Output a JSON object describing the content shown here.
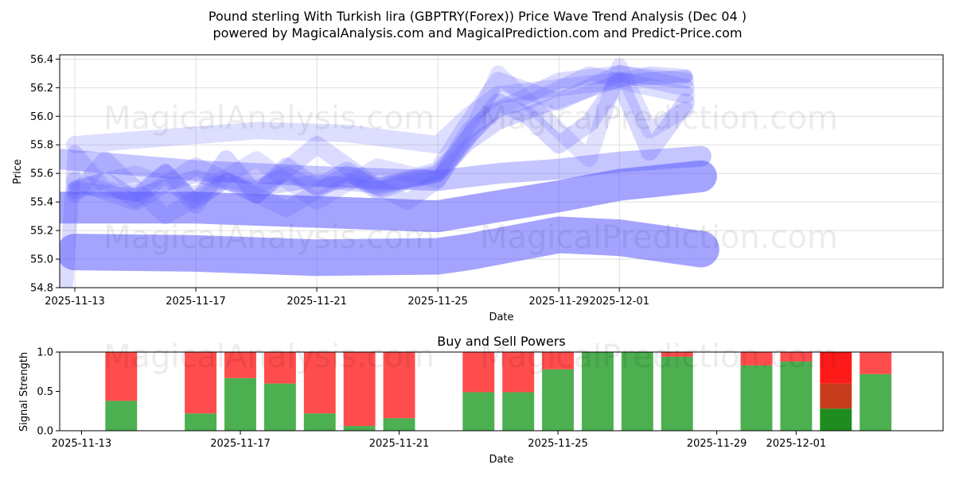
{
  "title_line1": "Pound sterling With Turkish lira (GBPTRY(Forex)) Price Wave Trend Analysis (Dec 04 )",
  "title_line2": "powered by MagicalAnalysis.com and MagicalPrediction.com and Predict-Price.com",
  "watermarks": [
    "MagicalAnalysis.com",
    "MagicalPrediction.com"
  ],
  "colors": {
    "wave": "#5a5aff",
    "buy": "#4caf50",
    "sell": "#ff4c4c",
    "buy_dark": "#1e8c1e",
    "sell_dark": "#ff1a1a",
    "mixed": "#c83c1e"
  },
  "chart_data": [
    {
      "type": "line",
      "title": "",
      "xlabel": "Date",
      "ylabel": "Price",
      "x_day_range": [
        -0.5,
        28.7
      ],
      "ylim": [
        54.8,
        56.43
      ],
      "x_ticks": [
        {
          "day": 0,
          "label": "2025-11-13"
        },
        {
          "day": 4,
          "label": "2025-11-17"
        },
        {
          "day": 8,
          "label": "2025-11-21"
        },
        {
          "day": 12,
          "label": "2025-11-25"
        },
        {
          "day": 16,
          "label": "2025-11-29"
        },
        {
          "day": 18,
          "label": "2025-12-01"
        }
      ],
      "y_ticks": [
        54.8,
        55.0,
        55.2,
        55.4,
        55.6,
        55.8,
        56.0,
        56.2,
        56.4
      ],
      "series": [
        {
          "name": "wave-1",
          "width": 46,
          "opacity": 0.55,
          "x": [
            0,
            4,
            8,
            12,
            13,
            16,
            18,
            20.7
          ],
          "y": [
            55.05,
            55.04,
            55.01,
            55.02,
            55.05,
            55.17,
            55.15,
            55.07
          ]
        },
        {
          "name": "wave-2",
          "width": 40,
          "opacity": 0.55,
          "x": [
            -0.5,
            4,
            8,
            12,
            14,
            16,
            18,
            20.7
          ],
          "y": [
            55.36,
            55.36,
            55.33,
            55.3,
            55.37,
            55.44,
            55.52,
            55.58
          ]
        },
        {
          "name": "wave-3",
          "width": 26,
          "opacity": 0.35,
          "x": [
            -0.5,
            4,
            8,
            12,
            14,
            16,
            18,
            20.7
          ],
          "y": [
            55.7,
            55.62,
            55.58,
            55.55,
            55.6,
            55.63,
            55.68,
            55.72
          ]
        },
        {
          "name": "wave-4",
          "width": 22,
          "opacity": 0.25,
          "x": [
            0,
            1,
            2,
            3,
            4,
            5,
            6,
            7,
            8,
            9,
            10,
            11,
            12,
            13,
            14,
            15,
            16,
            17,
            18,
            19,
            20.2
          ],
          "y": [
            55.48,
            55.55,
            55.42,
            55.6,
            55.38,
            55.7,
            55.45,
            55.65,
            55.5,
            55.62,
            55.48,
            55.55,
            55.6,
            55.85,
            56.1,
            56.0,
            55.8,
            55.95,
            56.25,
            55.75,
            56.1
          ]
        },
        {
          "name": "wave-5",
          "width": 22,
          "opacity": 0.22,
          "x": [
            0,
            2,
            4,
            6,
            8,
            10,
            12,
            13,
            14,
            16,
            18,
            20.2
          ],
          "y": [
            55.55,
            55.4,
            55.65,
            55.45,
            55.8,
            55.5,
            55.62,
            55.95,
            56.25,
            56.1,
            56.3,
            56.2
          ]
        },
        {
          "name": "wave-6",
          "width": 22,
          "opacity": 0.2,
          "x": [
            0,
            3,
            6,
            9,
            12,
            13,
            14,
            16,
            18,
            20.2
          ],
          "y": [
            55.8,
            55.85,
            55.9,
            55.88,
            55.8,
            56.0,
            56.15,
            56.2,
            56.25,
            56.15
          ]
        },
        {
          "name": "wave-7",
          "width": 20,
          "opacity": 0.22,
          "x": [
            0,
            1,
            3,
            5,
            7,
            9,
            11,
            12,
            13,
            14,
            16,
            18,
            20.2
          ],
          "y": [
            55.45,
            55.7,
            55.3,
            55.55,
            55.35,
            55.6,
            55.4,
            55.55,
            55.9,
            56.05,
            56.25,
            56.3,
            56.25
          ]
        },
        {
          "name": "wave-8",
          "width": 20,
          "opacity": 0.18,
          "x": [
            0,
            2,
            4,
            6,
            8,
            10,
            12,
            13,
            14,
            15,
            16,
            17,
            18,
            19,
            20.2
          ],
          "y": [
            55.5,
            55.6,
            55.45,
            55.7,
            55.4,
            55.65,
            55.55,
            55.85,
            56.3,
            56.1,
            55.9,
            55.7,
            56.35,
            55.9,
            56.05
          ]
        },
        {
          "name": "wave-9",
          "width": 18,
          "opacity": 0.22,
          "x": [
            -0.3,
            0,
            1,
            2,
            3,
            4,
            5,
            6,
            7,
            8,
            9,
            10,
            11,
            12,
            13,
            14,
            15,
            16,
            17,
            18,
            19,
            20.2
          ],
          "y": [
            54.8,
            55.75,
            55.5,
            55.45,
            55.62,
            55.4,
            55.55,
            55.5,
            55.6,
            55.5,
            55.55,
            55.52,
            55.55,
            55.6,
            55.85,
            56.05,
            56.1,
            56.2,
            56.3,
            56.25,
            56.3,
            56.28
          ]
        },
        {
          "name": "wave-10",
          "width": 16,
          "opacity": 0.25,
          "x": [
            0,
            2,
            4,
            6,
            8,
            10,
            12,
            13,
            14,
            16,
            18,
            20.2
          ],
          "y": [
            55.5,
            55.45,
            55.58,
            55.48,
            55.55,
            55.5,
            55.58,
            55.8,
            55.95,
            56.1,
            56.25,
            56.28
          ]
        }
      ]
    },
    {
      "type": "bar",
      "stacked": true,
      "title": "Buy and Sell Powers",
      "xlabel": "Date",
      "ylabel": "Signal Strength",
      "x_day_range": [
        -0.55,
        21.7
      ],
      "ylim": [
        0,
        1.0
      ],
      "x_ticks": [
        {
          "day": 0,
          "label": "2025-11-13"
        },
        {
          "day": 4,
          "label": "2025-11-17"
        },
        {
          "day": 8,
          "label": "2025-11-21"
        },
        {
          "day": 12,
          "label": "2025-11-25"
        },
        {
          "day": 16,
          "label": "2025-11-29"
        },
        {
          "day": 18,
          "label": "2025-12-01"
        }
      ],
      "y_ticks": [
        {
          "value": 0.0,
          "label": "0.0"
        },
        {
          "value": 0.5,
          "label": "0.5"
        },
        {
          "value": 1.0,
          "label": "1.0"
        }
      ],
      "series": [
        {
          "name": "buy",
          "days": [
            1,
            3,
            4,
            5,
            6,
            7,
            8,
            10,
            11,
            12,
            13,
            14,
            15,
            17,
            18,
            19,
            20
          ],
          "values": [
            0.38,
            0.22,
            0.67,
            0.6,
            0.22,
            0.06,
            0.16,
            0.49,
            0.49,
            0.78,
            1.0,
            1.0,
            0.94,
            0.83,
            0.88,
            0.28,
            0.72
          ]
        },
        {
          "name": "sell",
          "days": [
            1,
            3,
            4,
            5,
            6,
            7,
            8,
            10,
            11,
            12,
            13,
            14,
            15,
            17,
            18,
            19,
            20
          ],
          "values": [
            0.62,
            0.78,
            0.33,
            0.4,
            0.78,
            0.94,
            0.84,
            0.51,
            0.51,
            0.22,
            0.0,
            0.0,
            0.06,
            0.17,
            0.12,
            0.72,
            0.28
          ]
        }
      ],
      "highlight_day": 19,
      "highlight_mixed": [
        0.28,
        0.6
      ]
    }
  ]
}
